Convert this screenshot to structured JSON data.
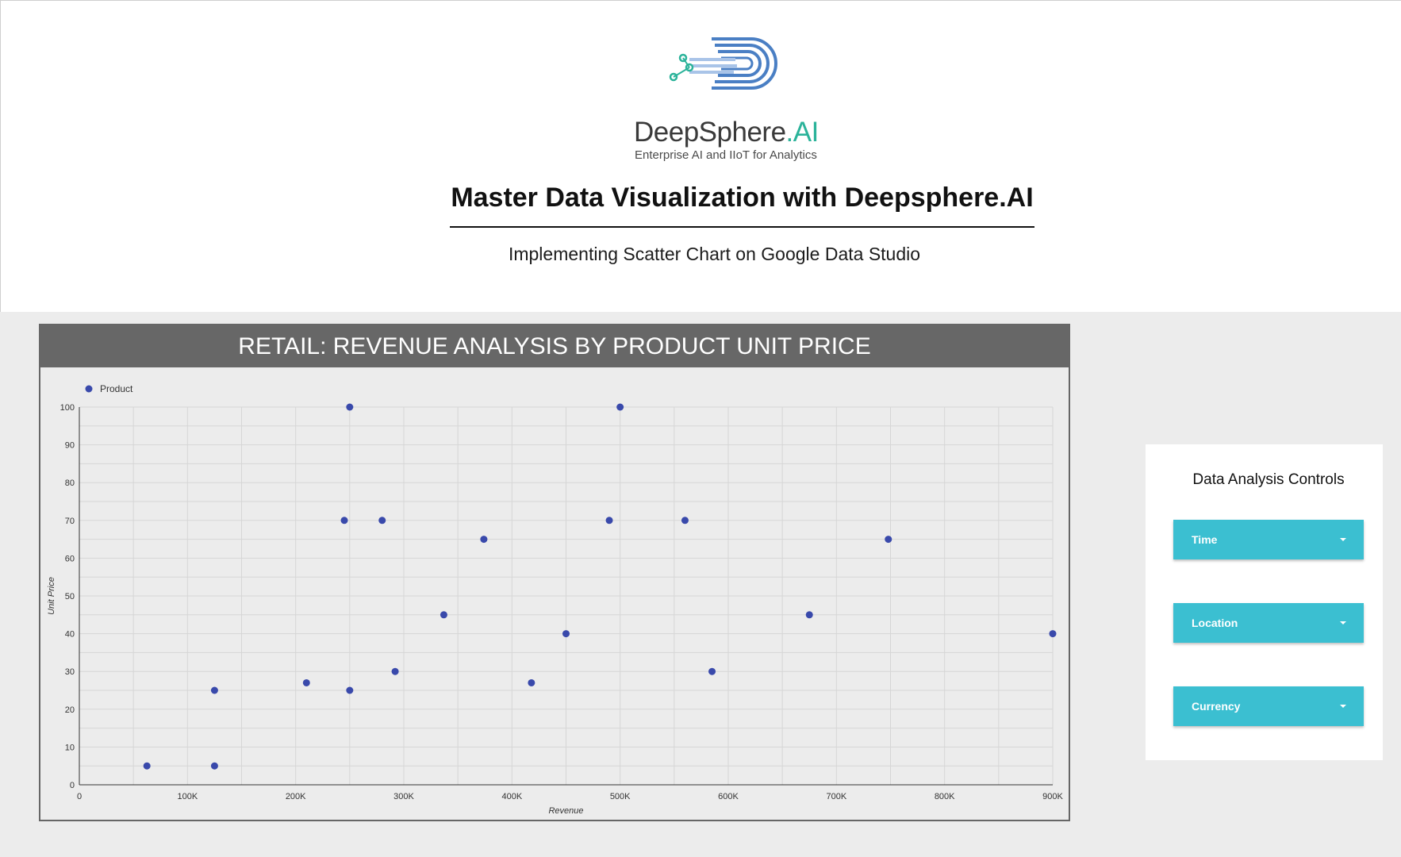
{
  "brand": {
    "name": "DeepSphere",
    "name_suffix": ".AI",
    "tagline": "Enterprise AI and IIoT for Analytics"
  },
  "header": {
    "title": "Master Data Visualization with Deepsphere.AI",
    "subtitle": "Implementing Scatter Chart on Google Data Studio"
  },
  "chart_header": "RETAIL: REVENUE ANALYSIS BY PRODUCT UNIT PRICE",
  "chart_data": {
    "type": "scatter",
    "title": "RETAIL: REVENUE ANALYSIS BY PRODUCT UNIT PRICE",
    "xlabel": "Revenue",
    "ylabel": "Unit Price",
    "xlim": [
      0,
      900000
    ],
    "ylim": [
      0,
      100
    ],
    "grid": true,
    "legend_position": "top-left",
    "x_tick_labels": [
      "0",
      "100K",
      "200K",
      "300K",
      "400K",
      "500K",
      "600K",
      "700K",
      "800K",
      "900K"
    ],
    "y_tick_labels": [
      "0",
      "10",
      "20",
      "30",
      "40",
      "50",
      "60",
      "70",
      "80",
      "90",
      "100"
    ],
    "series": [
      {
        "name": "Product",
        "color": "#3949ab",
        "points": [
          [
            62500,
            5
          ],
          [
            125000,
            5
          ],
          [
            125000,
            25
          ],
          [
            210000,
            27
          ],
          [
            245000,
            70
          ],
          [
            250000,
            100
          ],
          [
            250000,
            25
          ],
          [
            280000,
            70
          ],
          [
            292000,
            30
          ],
          [
            337000,
            45
          ],
          [
            374000,
            65
          ],
          [
            418000,
            27
          ],
          [
            450000,
            40
          ],
          [
            490000,
            70
          ],
          [
            500000,
            100
          ],
          [
            560000,
            70
          ],
          [
            585000,
            30
          ],
          [
            675000,
            45
          ],
          [
            748000,
            65
          ],
          [
            900000,
            40
          ]
        ]
      }
    ]
  },
  "controls": {
    "title": "Data Analysis Controls",
    "dropdowns": [
      {
        "label": "Time"
      },
      {
        "label": "Location"
      },
      {
        "label": "Currency"
      }
    ]
  },
  "colors": {
    "accent": "#3bbfd1",
    "chart_header_bg": "#676767",
    "point": "#3949ab"
  }
}
